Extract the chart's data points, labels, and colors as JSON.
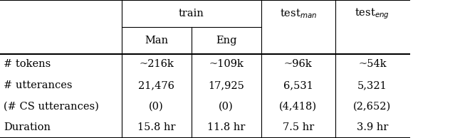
{
  "rows": [
    [
      "# tokens",
      "~216k",
      "~109k",
      "~96k",
      "~54k"
    ],
    [
      "# utterances",
      "21,476",
      "17,925",
      "6,531",
      "5,321"
    ],
    [
      "(# CS utterances)",
      "(0)",
      "(0)",
      "(4,418)",
      "(2,652)"
    ],
    [
      "Duration",
      "15.8 hr",
      "11.8 hr",
      "7.5 hr",
      "3.9 hr"
    ]
  ],
  "figsize": [
    6.32,
    1.94
  ],
  "dpi": 100,
  "table_bg": "#ffffff",
  "fontsize": 10.5
}
